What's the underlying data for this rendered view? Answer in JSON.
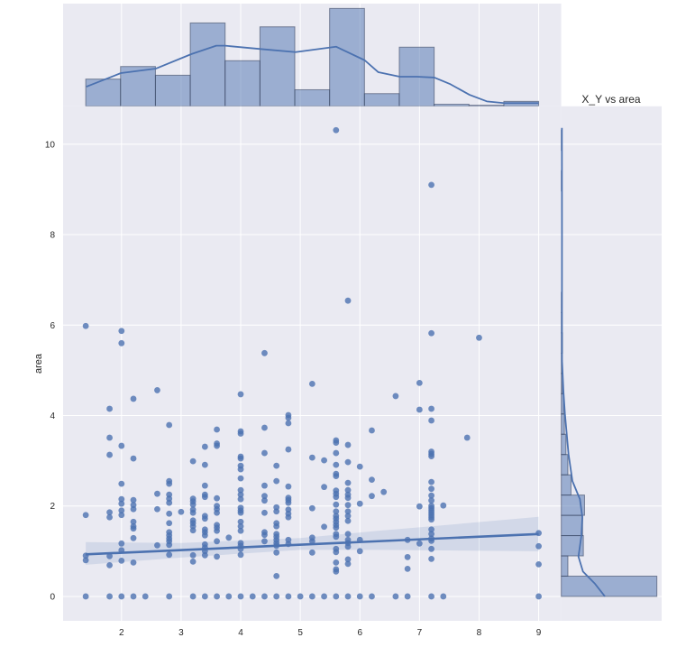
{
  "figure": {
    "title": "X_Y vs area",
    "ylabel": "area",
    "xlabel": ""
  },
  "chart_data": {
    "type": "scatter",
    "title": "X_Y vs area",
    "xlabel": "",
    "ylabel": "area",
    "xlim": [
      1.02,
      9.38
    ],
    "ylim": [
      -0.54,
      10.84
    ],
    "xticks": [
      2,
      3,
      4,
      5,
      6,
      7,
      8,
      9
    ],
    "yticks": [
      0,
      2,
      4,
      6,
      8,
      10
    ],
    "grid": true,
    "legend": null,
    "colors": {
      "primary": "#4C72B0",
      "background": "#EAEAF2",
      "grid": "#FFFFFF",
      "text": "#262626",
      "bar_edge": "#3A4660"
    },
    "scatter": [
      {
        "x": 1.4,
        "y": [
          5.98,
          1.8,
          0.9,
          0.8,
          0
        ]
      },
      {
        "x": 1.8,
        "y": [
          4.15,
          3.51,
          3.13,
          1.86,
          1.75,
          0.89,
          0.69,
          0
        ]
      },
      {
        "x": 2.0,
        "y": [
          5.87,
          5.6,
          3.33,
          2.49,
          2.15,
          2.05,
          1.9,
          1.8,
          1.17,
          1.02,
          0.79,
          0
        ]
      },
      {
        "x": 2.2,
        "y": [
          4.37,
          3.05,
          2.13,
          2.02,
          1.93,
          1.65,
          1.55,
          1.5,
          1.29,
          0.75,
          0
        ]
      },
      {
        "x": 2.4,
        "y": [
          0
        ]
      },
      {
        "x": 2.6,
        "y": [
          4.56,
          2.27,
          1.93,
          1.13
        ]
      },
      {
        "x": 2.8,
        "y": [
          3.79,
          2.55,
          2.49,
          2.25,
          2.16,
          2.07,
          1.83,
          1.62,
          1.42,
          1.35,
          1.28,
          1.22,
          1.14,
          0.92,
          0
        ]
      },
      {
        "x": 3.0,
        "y": [
          1.87
        ]
      },
      {
        "x": 3.2,
        "y": [
          2.99,
          2.16,
          2.1,
          2.03,
          1.92,
          1.85,
          1.68,
          1.62,
          1.55,
          1.46,
          0.91,
          0.77,
          0
        ]
      },
      {
        "x": 3.4,
        "y": [
          3.31,
          2.91,
          2.45,
          2.25,
          2.2,
          1.78,
          1.72,
          1.48,
          1.42,
          1.35,
          1.15,
          1.08,
          1.0,
          0.91,
          0
        ]
      },
      {
        "x": 3.6,
        "y": [
          3.69,
          3.38,
          3.33,
          2.17,
          2.0,
          1.93,
          1.85,
          1.58,
          1.52,
          1.45,
          1.22,
          0.88,
          0
        ]
      },
      {
        "x": 3.8,
        "y": [
          1.3,
          0
        ]
      },
      {
        "x": 4.0,
        "y": [
          4.47,
          3.65,
          3.6,
          3.09,
          3.05,
          2.89,
          2.81,
          2.61,
          2.35,
          2.25,
          2.15,
          1.96,
          1.9,
          1.85,
          1.65,
          1.55,
          1.45,
          1.18,
          1.12,
          1.05,
          0.92,
          0
        ]
      },
      {
        "x": 4.2,
        "y": [
          0
        ]
      },
      {
        "x": 4.4,
        "y": [
          5.38,
          3.73,
          3.17,
          2.45,
          2.22,
          2.12,
          1.85,
          1.42,
          1.36,
          1.22,
          0
        ]
      },
      {
        "x": 4.6,
        "y": [
          2.89,
          2.55,
          1.97,
          1.88,
          1.62,
          1.55,
          1.38,
          1.32,
          1.25,
          1.18,
          1.12,
          0.97,
          0.45,
          0
        ]
      },
      {
        "x": 4.8,
        "y": [
          4.01,
          3.95,
          3.83,
          3.25,
          2.43,
          2.18,
          2.13,
          2.07,
          1.92,
          1.83,
          1.75,
          1.25,
          1.16,
          0
        ]
      },
      {
        "x": 5.0,
        "y": [
          0
        ]
      },
      {
        "x": 5.2,
        "y": [
          4.7,
          3.07,
          1.95,
          1.3,
          1.22,
          0.97,
          0
        ]
      },
      {
        "x": 5.4,
        "y": [
          3.01,
          2.42,
          1.54,
          0
        ]
      },
      {
        "x": 5.6,
        "y": [
          10.31,
          3.45,
          3.4,
          3.17,
          2.91,
          2.71,
          2.66,
          2.34,
          2.27,
          2.2,
          2.03,
          1.88,
          1.78,
          1.72,
          1.65,
          1.58,
          1.52,
          1.38,
          1.32,
          1.05,
          0.98,
          0.75,
          0.6,
          0.55,
          0
        ]
      },
      {
        "x": 5.8,
        "y": [
          6.54,
          3.35,
          2.97,
          2.51,
          2.35,
          2.25,
          2.18,
          2.02,
          1.88,
          1.78,
          1.67,
          1.38,
          1.25,
          1.18,
          1.1,
          0.82,
          0.72,
          0
        ]
      },
      {
        "x": 6.0,
        "y": [
          2.87,
          2.05,
          1.25,
          1.0,
          0
        ]
      },
      {
        "x": 6.2,
        "y": [
          3.67,
          2.58,
          2.22,
          0
        ]
      },
      {
        "x": 6.4,
        "y": [
          2.31
        ]
      },
      {
        "x": 6.6,
        "y": [
          4.43,
          0
        ]
      },
      {
        "x": 6.8,
        "y": [
          1.25,
          0.87,
          0.61,
          0
        ]
      },
      {
        "x": 7.0,
        "y": [
          4.72,
          4.13,
          1.99,
          1.17
        ]
      },
      {
        "x": 7.2,
        "y": [
          9.1,
          5.82,
          4.15,
          3.89,
          3.2,
          3.15,
          3.1,
          2.53,
          2.38,
          2.23,
          2.12,
          2.0,
          1.95,
          1.9,
          1.85,
          1.8,
          1.75,
          1.7,
          1.48,
          1.38,
          1.28,
          1.23,
          1.05,
          0.83,
          0
        ]
      },
      {
        "x": 7.4,
        "y": [
          2.01,
          0
        ]
      },
      {
        "x": 7.8,
        "y": [
          3.51
        ]
      },
      {
        "x": 8.0,
        "y": [
          5.72
        ]
      },
      {
        "x": 9.0,
        "y": [
          1.4,
          1.11,
          0.71,
          0
        ]
      }
    ],
    "regression": {
      "x": [
        1.4,
        9.0
      ],
      "y": [
        0.93,
        1.38
      ],
      "ci": {
        "x": [
          1.4,
          3.0,
          5.0,
          6.3,
          7.2,
          9.0
        ],
        "lower": [
          0.7,
          0.86,
          1.03,
          1.03,
          1.02,
          1.0
        ],
        "upper": [
          1.2,
          1.18,
          1.29,
          1.45,
          1.55,
          1.76
        ]
      }
    },
    "marginal_x": {
      "type": "histogram",
      "range": [
        1.4,
        9.0
      ],
      "bins": 13,
      "counts": [
        28,
        41,
        32,
        86,
        47,
        82,
        17,
        101,
        13,
        61,
        2,
        1,
        5
      ],
      "ylim": [
        0,
        106
      ],
      "kde": {
        "x": [
          1.41,
          1.99,
          2.58,
          3.17,
          3.59,
          3.74,
          4.33,
          4.92,
          5.6,
          6.08,
          6.31,
          6.67,
          6.96,
          7.25,
          7.52,
          7.84,
          8.13,
          8.42,
          9.0
        ],
        "y": [
          20.2,
          34.2,
          38.9,
          53.8,
          62.5,
          62.5,
          59.1,
          55.9,
          61.5,
          47.5,
          35.1,
          30.5,
          30.5,
          29.6,
          22.7,
          11.8,
          5.0,
          3.2,
          3.2
        ]
      }
    },
    "marginal_y": {
      "type": "histogram",
      "orientation": "horizontal",
      "range": [
        0,
        10.31
      ],
      "bins": 23,
      "counts": [
        247,
        17,
        57,
        55,
        60,
        25,
        17,
        12,
        8,
        6,
        3,
        1,
        3,
        2,
        1,
        0,
        0,
        0,
        0,
        0,
        1,
        0,
        1
      ],
      "xlim": [
        0,
        259.4
      ],
      "kde": {
        "y": [
          0.0,
          0.28,
          0.55,
          0.88,
          1.35,
          1.75,
          2.15,
          2.55,
          3.15,
          4.04,
          4.54,
          5.21,
          6.0,
          8.0,
          10.36
        ],
        "x": [
          112.7,
          87.0,
          56.0,
          44.3,
          52.0,
          54.4,
          48.1,
          28.7,
          18.6,
          9.3,
          5.4,
          1.8,
          1.6,
          1.7,
          1.5
        ]
      }
    }
  }
}
